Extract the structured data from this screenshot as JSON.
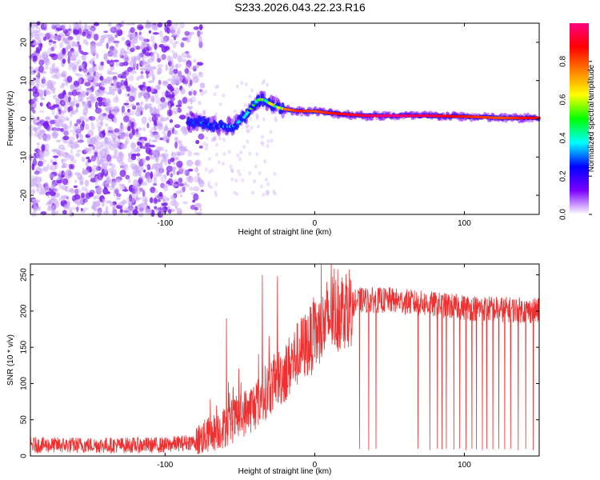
{
  "title": "S233.2026.043.22.23.R16",
  "chart_data": [
    {
      "type": "heatmap",
      "name": "spectrogram",
      "xlabel": "Height of straight line (km)",
      "ylabel": "Frequency (Hz)",
      "xlim": [
        -190,
        150
      ],
      "ylim": [
        -25,
        25
      ],
      "xticks": [
        -100,
        0,
        100
      ],
      "yticks": [
        -20,
        -10,
        0,
        10,
        20
      ],
      "colorbar": {
        "label": "Normalized spectral amplitude",
        "range": [
          0,
          1
        ],
        "ticks": [
          0.0,
          0.2,
          0.4,
          0.6,
          0.8
        ],
        "stops": [
          "#ffffff",
          "#7b00ff",
          "#0000ff",
          "#00ffff",
          "#00ff00",
          "#ffff00",
          "#ff8000",
          "#ff0000",
          "#ff0080"
        ]
      },
      "noise_region_x": [
        -190,
        -75
      ],
      "ridge": {
        "x": [
          -85,
          -75,
          -65,
          -55,
          -48,
          -42,
          -38,
          -34,
          -30,
          -25,
          -20,
          -10,
          0,
          10,
          20,
          35,
          50,
          75,
          100,
          125,
          150
        ],
        "freq": [
          -1,
          -1,
          -2,
          -2,
          0,
          3,
          5,
          5,
          4,
          3,
          2.5,
          2,
          2,
          1.5,
          1.2,
          0.8,
          0.8,
          0.8,
          0.6,
          0.2,
          0.2
        ],
        "amp": [
          0.25,
          0.3,
          0.3,
          0.35,
          0.4,
          0.5,
          0.55,
          0.6,
          0.6,
          0.7,
          0.75,
          0.85,
          0.8,
          0.85,
          0.9,
          0.95,
          1.0,
          0.95,
          0.85,
          0.8,
          0.9
        ]
      }
    },
    {
      "type": "line",
      "name": "snr",
      "xlabel": "Height of straight line (km)",
      "ylabel": "SNR (10 * v/v)",
      "xlim": [
        -190,
        150
      ],
      "ylim": [
        0,
        265
      ],
      "xticks": [
        -100,
        0,
        100
      ],
      "yticks": [
        0,
        50,
        100,
        150,
        200,
        250
      ],
      "color": "#f03030",
      "profile": {
        "x": [
          -190,
          -100,
          -80,
          -60,
          -50,
          -40,
          -30,
          -20,
          -10,
          0,
          10,
          20,
          30,
          50,
          100,
          150
        ],
        "snr": [
          15,
          15,
          20,
          40,
          55,
          70,
          95,
          115,
          145,
          165,
          190,
          205,
          215,
          215,
          205,
          200
        ]
      },
      "spikes": [
        {
          "x": 30,
          "y": 10
        },
        {
          "x": 36,
          "y": 8
        },
        {
          "x": 41,
          "y": 10
        },
        {
          "x": 69,
          "y": 10
        },
        {
          "x": 77,
          "y": 8
        },
        {
          "x": 82,
          "y": 10
        },
        {
          "x": 85,
          "y": 9
        },
        {
          "x": 88,
          "y": 10
        },
        {
          "x": 93,
          "y": 9
        },
        {
          "x": 97,
          "y": 10
        },
        {
          "x": 101,
          "y": 8
        },
        {
          "x": 105,
          "y": 10
        },
        {
          "x": 108,
          "y": 9
        },
        {
          "x": 112,
          "y": 8
        },
        {
          "x": 115,
          "y": 10
        },
        {
          "x": 119,
          "y": 9
        },
        {
          "x": 123,
          "y": 10
        },
        {
          "x": 127,
          "y": 9
        },
        {
          "x": 131,
          "y": 10
        },
        {
          "x": 136,
          "y": 8
        },
        {
          "x": 141,
          "y": 10
        },
        {
          "x": 146,
          "y": 8
        },
        {
          "x": -59,
          "y": 190
        },
        {
          "x": -35,
          "y": 250
        },
        {
          "x": -25,
          "y": 248
        },
        {
          "x": 8,
          "y": 240
        },
        {
          "x": 11,
          "y": 265
        }
      ]
    }
  ]
}
